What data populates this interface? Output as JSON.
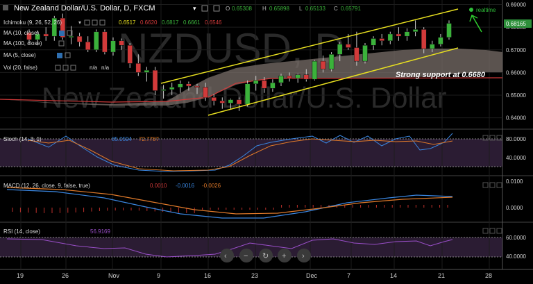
{
  "header": {
    "title": "New Zealand Dollar/U.S. Dollar, D, FXCM",
    "o_label": "O",
    "o_value": "0.65308",
    "h_label": "H",
    "h_value": "0.65898",
    "l_label": "L",
    "l_value": "0.65133",
    "c_label": "C",
    "c_value": "0.65791",
    "realtime": "realtime"
  },
  "watermark": {
    "symbol": "NZDUSD, D",
    "name": "New Zealand Dollar/U.S. Dollar"
  },
  "indicators": {
    "ichimoku": {
      "label": "Ichimoku (9, 26, 52, 26)",
      "values": [
        "0.6517",
        "0.6620",
        "0.6817",
        "0.6661",
        "0.6546"
      ]
    },
    "ma10": {
      "label": "MA (10, close)"
    },
    "ma100": {
      "label": "MA (100, close)"
    },
    "ma5": {
      "label": "MA (5, close)"
    },
    "vol": {
      "label": "Vol (20, false)",
      "values": [
        "n/a",
        "n/a"
      ]
    }
  },
  "annotation": {
    "text": "Strong support at 0.6680"
  },
  "current_price_label": "0.68165",
  "colors": {
    "bull": "#3bb23b",
    "bear": "#d23a3a",
    "channel": "#e8e020",
    "cloud": "#7a6f6a",
    "panel": "#2b1c33",
    "macd_line": "#3a86e0",
    "signal_line": "#e07a2a",
    "rsi_line": "#9a4fc9",
    "price_box": "#2d8f3a"
  },
  "chart_data": [
    {
      "type": "candlestick",
      "title": "New Zealand Dollar/U.S. Dollar, D, FXCM",
      "ylim": [
        0.635,
        0.692
      ],
      "y_ticks": [
        0.64,
        0.65,
        0.66,
        0.67,
        0.68,
        0.69
      ],
      "y_tick_labels": [
        "0.64000",
        "0.65000",
        "0.66000",
        "0.67000",
        "0.68000",
        "0.69000"
      ],
      "x_tick_labels": [
        "19",
        "26",
        "Nov",
        "9",
        "16",
        "23",
        "Dec",
        "7",
        "14",
        "21",
        "28"
      ],
      "candles": [
        {
          "o": 0.6775,
          "h": 0.679,
          "l": 0.6725,
          "c": 0.6745
        },
        {
          "o": 0.6745,
          "h": 0.6785,
          "l": 0.672,
          "c": 0.677
        },
        {
          "o": 0.677,
          "h": 0.68,
          "l": 0.674,
          "c": 0.676
        },
        {
          "o": 0.676,
          "h": 0.685,
          "l": 0.674,
          "c": 0.684
        },
        {
          "o": 0.684,
          "h": 0.686,
          "l": 0.6745,
          "c": 0.6755
        },
        {
          "o": 0.6755,
          "h": 0.6805,
          "l": 0.6725,
          "c": 0.676
        },
        {
          "o": 0.676,
          "h": 0.6775,
          "l": 0.6715,
          "c": 0.6735
        },
        {
          "o": 0.6735,
          "h": 0.676,
          "l": 0.669,
          "c": 0.67
        },
        {
          "o": 0.67,
          "h": 0.679,
          "l": 0.669,
          "c": 0.678
        },
        {
          "o": 0.678,
          "h": 0.679,
          "l": 0.668,
          "c": 0.669
        },
        {
          "o": 0.669,
          "h": 0.6755,
          "l": 0.6675,
          "c": 0.674
        },
        {
          "o": 0.674,
          "h": 0.675,
          "l": 0.67,
          "c": 0.672
        },
        {
          "o": 0.672,
          "h": 0.673,
          "l": 0.662,
          "c": 0.664
        },
        {
          "o": 0.664,
          "h": 0.668,
          "l": 0.6585,
          "c": 0.66
        },
        {
          "o": 0.66,
          "h": 0.6625,
          "l": 0.656,
          "c": 0.661
        },
        {
          "o": 0.661,
          "h": 0.6625,
          "l": 0.65,
          "c": 0.652
        },
        {
          "o": 0.652,
          "h": 0.6545,
          "l": 0.6485,
          "c": 0.6525
        },
        {
          "o": 0.6525,
          "h": 0.6555,
          "l": 0.65,
          "c": 0.6535
        },
        {
          "o": 0.6535,
          "h": 0.6565,
          "l": 0.651,
          "c": 0.655
        },
        {
          "o": 0.655,
          "h": 0.656,
          "l": 0.652,
          "c": 0.654
        },
        {
          "o": 0.654,
          "h": 0.655,
          "l": 0.6505,
          "c": 0.6535
        },
        {
          "o": 0.6535,
          "h": 0.6555,
          "l": 0.6475,
          "c": 0.649
        },
        {
          "o": 0.649,
          "h": 0.6505,
          "l": 0.6455,
          "c": 0.6475
        },
        {
          "o": 0.6475,
          "h": 0.649,
          "l": 0.644,
          "c": 0.6465
        },
        {
          "o": 0.6465,
          "h": 0.6485,
          "l": 0.644,
          "c": 0.648
        },
        {
          "o": 0.648,
          "h": 0.649,
          "l": 0.643,
          "c": 0.646
        },
        {
          "o": 0.646,
          "h": 0.6565,
          "l": 0.645,
          "c": 0.655
        },
        {
          "o": 0.655,
          "h": 0.6585,
          "l": 0.652,
          "c": 0.6565
        },
        {
          "o": 0.6565,
          "h": 0.658,
          "l": 0.651,
          "c": 0.653
        },
        {
          "o": 0.653,
          "h": 0.657,
          "l": 0.6515,
          "c": 0.6555
        },
        {
          "o": 0.6555,
          "h": 0.6595,
          "l": 0.654,
          "c": 0.6585
        },
        {
          "o": 0.6585,
          "h": 0.66,
          "l": 0.656,
          "c": 0.6575
        },
        {
          "o": 0.6575,
          "h": 0.6595,
          "l": 0.6555,
          "c": 0.659
        },
        {
          "o": 0.659,
          "h": 0.6615,
          "l": 0.656,
          "c": 0.657
        },
        {
          "o": 0.657,
          "h": 0.6655,
          "l": 0.6565,
          "c": 0.665
        },
        {
          "o": 0.665,
          "h": 0.6675,
          "l": 0.66,
          "c": 0.6615
        },
        {
          "o": 0.6615,
          "h": 0.669,
          "l": 0.6605,
          "c": 0.668
        },
        {
          "o": 0.668,
          "h": 0.6735,
          "l": 0.665,
          "c": 0.6725
        },
        {
          "o": 0.6725,
          "h": 0.677,
          "l": 0.67,
          "c": 0.671
        },
        {
          "o": 0.671,
          "h": 0.678,
          "l": 0.663,
          "c": 0.665
        },
        {
          "o": 0.665,
          "h": 0.673,
          "l": 0.664,
          "c": 0.672
        },
        {
          "o": 0.672,
          "h": 0.676,
          "l": 0.67,
          "c": 0.675
        },
        {
          "o": 0.675,
          "h": 0.677,
          "l": 0.672,
          "c": 0.674
        },
        {
          "o": 0.674,
          "h": 0.678,
          "l": 0.6725,
          "c": 0.677
        },
        {
          "o": 0.677,
          "h": 0.68,
          "l": 0.674,
          "c": 0.676
        },
        {
          "o": 0.676,
          "h": 0.6795,
          "l": 0.674,
          "c": 0.678
        },
        {
          "o": 0.678,
          "h": 0.683,
          "l": 0.676,
          "c": 0.679
        },
        {
          "o": 0.679,
          "h": 0.68,
          "l": 0.6685,
          "c": 0.6705
        },
        {
          "o": 0.6705,
          "h": 0.674,
          "l": 0.669,
          "c": 0.6725
        },
        {
          "o": 0.6725,
          "h": 0.677,
          "l": 0.6715,
          "c": 0.6755
        },
        {
          "o": 0.6755,
          "h": 0.683,
          "l": 0.6745,
          "c": 0.6817
        }
      ]
    },
    {
      "type": "line",
      "title": "Stoch (14, 3, 1)",
      "values_text": [
        "85.0594",
        "72.7787"
      ],
      "y_tick_labels": [
        "80.0000",
        "40.0000"
      ]
    },
    {
      "type": "line",
      "title": "MACD (12, 26, close, 9, false, true)",
      "values_text": [
        "0.0010",
        "-0.0016",
        "-0.0026"
      ],
      "y_tick_labels": [
        "0.0100",
        "0.0000"
      ]
    },
    {
      "type": "line",
      "title": "RSI (14, close)",
      "values_text": [
        "56.9169"
      ],
      "y_tick_labels": [
        "60.0000",
        "40.0000"
      ]
    }
  ]
}
